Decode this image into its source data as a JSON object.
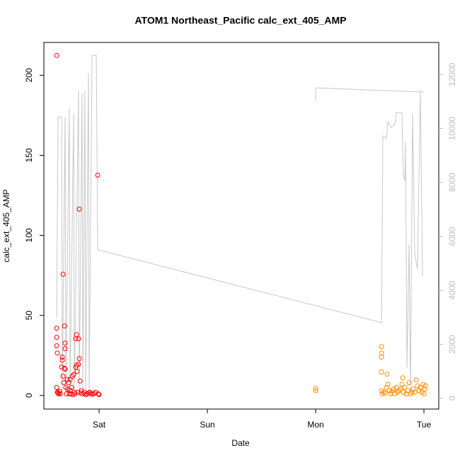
{
  "chart_data": {
    "type": "scatter",
    "title": "ATOM1 Northeast_Pacific calc_ext_405_AMP",
    "xlabel": "Date",
    "ylabel": "calc_ext_405_AMP",
    "xlim": [
      0.49,
      4.137
    ],
    "xticks": [
      {
        "value": 1,
        "label": "Sat"
      },
      {
        "value": 2,
        "label": "Sun"
      },
      {
        "value": 3,
        "label": "Mon"
      },
      {
        "value": 4,
        "label": "Tue"
      }
    ],
    "ylim": [
      -8.5,
      220.5
    ],
    "yticks": [
      0,
      50,
      100,
      150,
      200
    ],
    "y2lim": [
      -400,
      13190
    ],
    "y2ticks": [
      0,
      2000,
      4000,
      6000,
      8000,
      10000,
      12000
    ],
    "y2color": "#bdbdbd",
    "series": [
      {
        "type": "scatter",
        "color": "#ff0000",
        "x": [
          0.608,
          0.608,
          0.608,
          0.608,
          0.614,
          0.608,
          0.614,
          0.62,
          0.627,
          0.634,
          0.641,
          0.654,
          0.66,
          0.66,
          0.667,
          0.667,
          0.673,
          0.68,
          0.68,
          0.686,
          0.686,
          0.686,
          0.693,
          0.699,
          0.706,
          0.712,
          0.719,
          0.725,
          0.732,
          0.732,
          0.739,
          0.745,
          0.752,
          0.758,
          0.765,
          0.771,
          0.778,
          0.784,
          0.784,
          0.791,
          0.791,
          0.797,
          0.804,
          0.81,
          0.81,
          0.817,
          0.817,
          0.824,
          0.83,
          0.837,
          0.85,
          0.863,
          0.876,
          0.889,
          0.902,
          0.915,
          0.928,
          0.941,
          0.954,
          0.967,
          0.987,
          0.993,
          1.0
        ],
        "values": [
          212.4,
          42,
          36.3,
          31,
          26.5,
          5,
          2,
          1.5,
          1,
          2.5,
          1,
          17.7,
          24,
          22,
          75.7,
          12,
          8,
          43.4,
          17,
          32.7,
          29.2,
          16.4,
          5,
          1,
          10,
          4,
          8,
          1,
          10,
          3,
          1,
          5,
          12,
          0.5,
          13,
          2,
          1,
          35.4,
          17.7,
          19,
          38,
          15,
          2,
          35.4,
          19.5,
          23,
          116.4,
          9,
          1.5,
          3,
          1,
          2,
          0.5,
          1,
          1.5,
          2,
          1,
          0.8,
          1.2,
          2,
          137.6,
          1,
          0.5
        ]
      },
      {
        "type": "scatter",
        "color": "#ff8c00",
        "x": [
          3.0,
          3.0,
          3.608,
          3.608,
          3.608,
          3.608,
          3.608,
          3.614,
          3.627,
          3.641,
          3.654,
          3.66,
          3.667,
          3.68,
          3.693,
          3.706,
          3.719,
          3.732,
          3.745,
          3.758,
          3.771,
          3.784,
          3.797,
          3.804,
          3.81,
          3.824,
          3.837,
          3.85,
          3.863,
          3.876,
          3.889,
          3.902,
          3.915,
          3.928,
          3.941,
          3.954,
          3.967,
          3.98,
          3.993,
          4.0,
          4.007,
          4.013
        ],
        "values": [
          4.4,
          3,
          30.5,
          26.5,
          24,
          14.6,
          3,
          1,
          2,
          1.5,
          5,
          13.3,
          7,
          3,
          1,
          2.5,
          4,
          1,
          5,
          2,
          3,
          4,
          7,
          11,
          2,
          5,
          1,
          3,
          8,
          1,
          2,
          4,
          2,
          9.7,
          6,
          3,
          5,
          2,
          7,
          1,
          4,
          6
        ]
      },
      {
        "type": "line",
        "axis": "y2",
        "color": "#c8c8c8",
        "x": [
          0.608,
          0.621,
          0.654,
          0.66,
          0.686,
          0.693,
          0.725,
          0.732,
          0.765,
          0.771,
          0.81,
          0.817,
          0.843,
          0.85,
          0.869,
          0.876,
          0.902,
          0.908,
          0.935,
          0.974,
          0.987,
          3.608,
          3.621,
          3.654,
          3.667,
          3.699,
          3.732,
          3.745,
          3.797,
          3.81,
          3.824,
          3.83,
          3.843,
          3.863,
          3.876,
          3.895,
          3.915,
          3.941,
          3.967,
          3.987,
          null,
          3.0,
          3.0,
          4.0
        ],
        "values": [
          2962,
          10433,
          10433,
          210,
          10433,
          210,
          10747,
          210,
          10564,
          210,
          11402,
          210,
          11300,
          210,
          11402,
          210,
          12057,
          210,
          12713,
          12713,
          5505,
          2805,
          9725,
          9646,
          10249,
          10040,
          10170,
          10590,
          10590,
          8204,
          8073,
          9515,
          1127,
          5714,
          210,
          10564,
          5321,
          4796,
          11428,
          4534,
          null,
          11009,
          11507,
          11350
        ]
      }
    ]
  }
}
